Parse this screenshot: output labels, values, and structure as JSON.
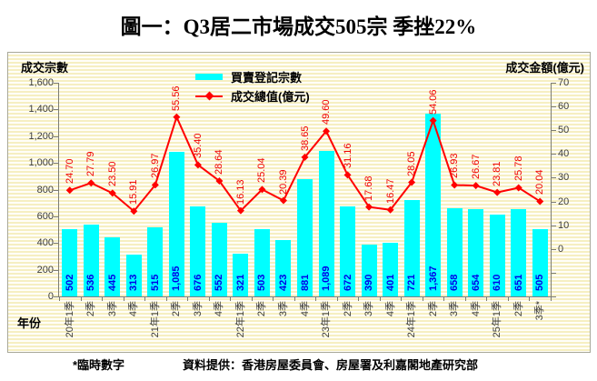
{
  "title": "圖一：Q3居二市場成交505宗 季挫22%",
  "footer": {
    "note": "*臨時數字",
    "source": "資料提供：香港房屋委員會、房屋署及利嘉閣地產研究部"
  },
  "colors": {
    "bar_fill": "#00ffff",
    "bar_value_label": "#0000e8",
    "line_stroke": "#ff0000",
    "line_value_label": "#f00000",
    "axis": "#7d7d74",
    "background_stripe": "#f6efc2"
  },
  "chart_data": {
    "type": "bar",
    "subtype": "combo-bar-line-dual-axis",
    "title": "圖一：Q3居二市場成交505宗 季挫22%",
    "xlabel": "年份",
    "grid": false,
    "legend_position": "top-center",
    "categories": [
      "20年1季",
      "2季",
      "3季",
      "4季",
      "21年1季",
      "2季",
      "3季",
      "4季",
      "22年1季",
      "2季",
      "3季",
      "4季",
      "23年1季",
      "2季",
      "3季",
      "4季",
      "24年1季",
      "2季",
      "3季",
      "4季",
      "25年1季",
      "2季",
      "3季*"
    ],
    "series": [
      {
        "name": "買賣登記宗數",
        "type": "bar",
        "axis": "left",
        "color": "#00ffff",
        "values": [
          502,
          536,
          445,
          313,
          515,
          1085,
          676,
          552,
          321,
          503,
          423,
          881,
          1089,
          672,
          390,
          401,
          721,
          1367,
          658,
          654,
          610,
          651,
          505
        ],
        "labels": [
          "502",
          "536",
          "445",
          "313",
          "515",
          "1,085",
          "676",
          "552",
          "321",
          "503",
          "423",
          "881",
          "1,089",
          "672",
          "390",
          "401",
          "721",
          "1,367",
          "658",
          "654",
          "610",
          "651",
          "505"
        ]
      },
      {
        "name": "成交總值(億元)",
        "type": "line",
        "axis": "right",
        "color": "#ff0000",
        "values": [
          24.7,
          27.79,
          23.5,
          15.91,
          26.97,
          55.56,
          35.4,
          28.64,
          16.13,
          25.04,
          20.39,
          38.65,
          49.6,
          31.16,
          17.68,
          16.47,
          28.05,
          54.06,
          26.93,
          26.67,
          23.81,
          25.78,
          20.04
        ],
        "labels": [
          "24.70",
          "27.79",
          "23.50",
          "15.91",
          "26.97",
          "55.56",
          "35.40",
          "28.64",
          "16.13",
          "25.04",
          "20.39",
          "38.65",
          "49.60",
          "31.16",
          "17.68",
          "16.47",
          "28.05",
          "54.06",
          "26.93",
          "26.67",
          "23.81",
          "25.78",
          "20.04"
        ]
      }
    ],
    "left_axis": {
      "title": "成交宗數",
      "min": 0,
      "max": 1600,
      "step": 200,
      "tick_labels": [
        "1,600",
        "1,400",
        "1,200",
        "1,000",
        "800",
        "600",
        "400",
        "200",
        "0"
      ]
    },
    "right_axis": {
      "title": "成交金額(億元)",
      "min": -20,
      "max": 70,
      "step": 10,
      "labeled_min": 0,
      "tick_labels": [
        "70",
        "60",
        "50",
        "40",
        "30",
        "20",
        "10",
        "0"
      ]
    }
  }
}
